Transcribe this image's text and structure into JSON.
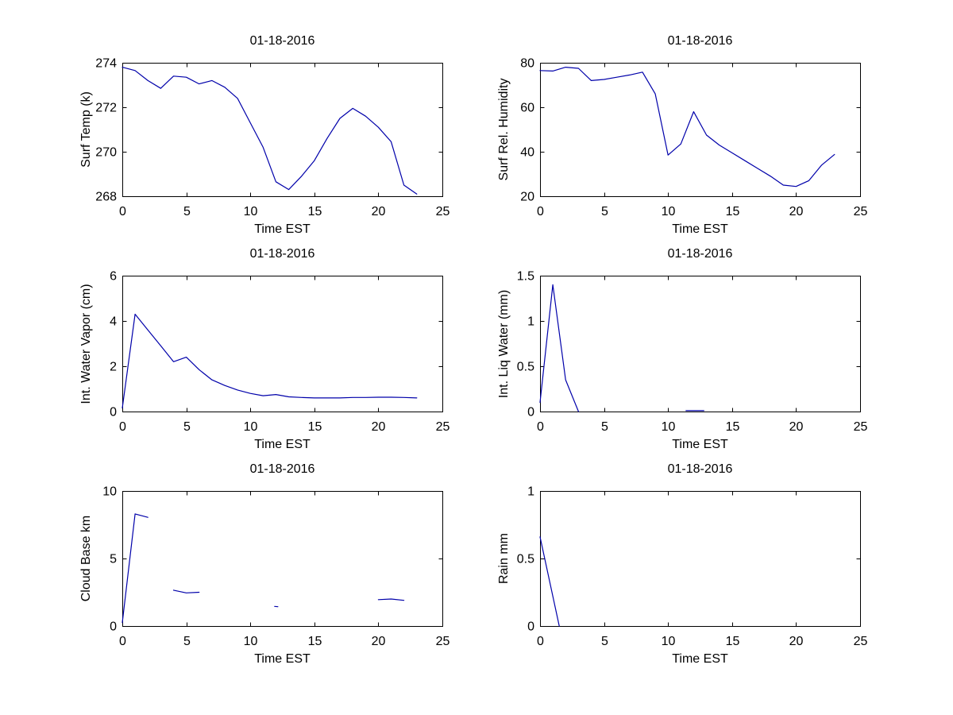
{
  "figure": {
    "background": "#ffffff",
    "axis_color": "#000000",
    "line_color": "#0000AA",
    "date": "01-18-2016"
  },
  "chart_data": [
    {
      "type": "line",
      "title": "01-18-2016",
      "xlabel": "Time EST",
      "ylabel": "Surf Temp (k)",
      "xlim": [
        0,
        25
      ],
      "ylim": [
        268,
        274
      ],
      "xticks": [
        0,
        5,
        10,
        15,
        20,
        25
      ],
      "yticks": [
        268,
        270,
        272,
        274
      ],
      "grid": false,
      "legend": null,
      "series": [
        {
          "name": "surface-temperature",
          "segments": [
            [
              [
                0,
                273.8
              ],
              [
                1,
                273.65
              ],
              [
                2,
                273.2
              ],
              [
                3,
                272.85
              ],
              [
                4,
                273.4
              ],
              [
                5,
                273.35
              ],
              [
                6,
                273.05
              ],
              [
                7,
                273.2
              ],
              [
                8,
                272.9
              ],
              [
                9,
                272.4
              ],
              [
                10,
                271.3
              ],
              [
                11,
                270.2
              ],
              [
                12,
                268.65
              ],
              [
                13,
                268.3
              ],
              [
                14,
                268.9
              ],
              [
                15,
                269.6
              ],
              [
                16,
                270.6
              ],
              [
                17,
                271.5
              ],
              [
                18,
                271.95
              ],
              [
                19,
                271.6
              ],
              [
                20,
                271.1
              ],
              [
                21,
                270.45
              ],
              [
                22,
                268.5
              ],
              [
                23,
                268.1
              ]
            ]
          ]
        }
      ]
    },
    {
      "type": "line",
      "title": "01-18-2016",
      "xlabel": "Time EST",
      "ylabel": "Surf Rel. Humidity",
      "xlim": [
        0,
        25
      ],
      "ylim": [
        20,
        80
      ],
      "xticks": [
        0,
        5,
        10,
        15,
        20,
        25
      ],
      "yticks": [
        20,
        40,
        60,
        80
      ],
      "grid": false,
      "legend": null,
      "series": [
        {
          "name": "surface-relative-humidity",
          "segments": [
            [
              [
                0,
                76.5
              ],
              [
                1,
                76.3
              ],
              [
                2,
                78
              ],
              [
                3,
                77.5
              ],
              [
                4,
                72
              ],
              [
                5,
                72.5
              ],
              [
                6,
                73.5
              ],
              [
                7,
                74.5
              ],
              [
                8,
                75.8
              ],
              [
                9,
                66
              ],
              [
                10,
                38.5
              ],
              [
                11,
                43.5
              ],
              [
                12,
                58
              ],
              [
                13,
                47.5
              ],
              [
                14,
                43
              ],
              [
                15,
                39.5
              ],
              [
                16,
                36
              ],
              [
                17,
                32.5
              ],
              [
                18,
                29
              ],
              [
                19,
                25
              ],
              [
                20,
                24.4
              ],
              [
                21,
                27
              ],
              [
                22,
                34
              ],
              [
                23,
                38.8
              ]
            ]
          ]
        }
      ]
    },
    {
      "type": "line",
      "title": "01-18-2016",
      "xlabel": "Time EST",
      "ylabel": "Int. Water Vapor (cm)",
      "xlim": [
        0,
        25
      ],
      "ylim": [
        0,
        6
      ],
      "xticks": [
        0,
        5,
        10,
        15,
        20,
        25
      ],
      "yticks": [
        0,
        2,
        4,
        6
      ],
      "grid": false,
      "legend": null,
      "series": [
        {
          "name": "integrated-water-vapor",
          "segments": [
            [
              [
                0,
                0.15
              ],
              [
                1,
                4.3
              ],
              [
                2,
                3.6
              ],
              [
                3,
                2.9
              ],
              [
                4,
                2.2
              ],
              [
                5,
                2.4
              ],
              [
                6,
                1.85
              ],
              [
                7,
                1.4
              ],
              [
                8,
                1.15
              ],
              [
                9,
                0.95
              ],
              [
                10,
                0.8
              ],
              [
                11,
                0.7
              ],
              [
                12,
                0.75
              ],
              [
                13,
                0.65
              ],
              [
                14,
                0.62
              ],
              [
                15,
                0.6
              ],
              [
                16,
                0.6
              ],
              [
                17,
                0.6
              ],
              [
                18,
                0.62
              ],
              [
                19,
                0.62
              ],
              [
                20,
                0.63
              ],
              [
                21,
                0.63
              ],
              [
                22,
                0.62
              ],
              [
                23,
                0.6
              ]
            ]
          ]
        }
      ]
    },
    {
      "type": "line",
      "title": "01-18-2016",
      "xlabel": "Time EST",
      "ylabel": "Int. Liq Water (mm)",
      "xlim": [
        0,
        25
      ],
      "ylim": [
        0,
        1.5
      ],
      "xticks": [
        0,
        5,
        10,
        15,
        20,
        25
      ],
      "yticks": [
        0,
        0.5,
        1,
        1.5
      ],
      "grid": false,
      "legend": null,
      "series": [
        {
          "name": "integrated-liquid-water",
          "segments": [
            [
              [
                0,
                0.1
              ],
              [
                1,
                1.4
              ],
              [
                2,
                0.35
              ],
              [
                3,
                0
              ]
            ],
            [
              [
                11.4,
                0.01
              ],
              [
                12.8,
                0.01
              ]
            ]
          ]
        }
      ]
    },
    {
      "type": "line",
      "title": "01-18-2016",
      "xlabel": "Time EST",
      "ylabel": "Cloud Base km",
      "xlim": [
        0,
        25
      ],
      "ylim": [
        0,
        10
      ],
      "xticks": [
        0,
        5,
        10,
        15,
        20,
        25
      ],
      "yticks": [
        0,
        5,
        10
      ],
      "grid": false,
      "legend": null,
      "series": [
        {
          "name": "cloud-base-height",
          "segments": [
            [
              [
                0,
                0.25
              ],
              [
                1,
                8.3
              ],
              [
                2,
                8.05
              ]
            ],
            [
              [
                4,
                2.65
              ],
              [
                5,
                2.45
              ],
              [
                6,
                2.5
              ]
            ],
            [
              [
                11.9,
                1.45
              ],
              [
                12.15,
                1.43
              ]
            ],
            [
              [
                20,
                1.95
              ],
              [
                21,
                2.0
              ],
              [
                22,
                1.9
              ]
            ]
          ]
        }
      ]
    },
    {
      "type": "line",
      "title": "01-18-2016",
      "xlabel": "Time EST",
      "ylabel": "Rain mm",
      "xlim": [
        0,
        25
      ],
      "ylim": [
        0,
        1
      ],
      "xticks": [
        0,
        5,
        10,
        15,
        20,
        25
      ],
      "yticks": [
        0,
        0.5,
        1
      ],
      "grid": false,
      "legend": null,
      "series": [
        {
          "name": "rain-amount",
          "segments": [
            [
              [
                0,
                0.66
              ],
              [
                1.5,
                0
              ]
            ]
          ]
        }
      ]
    }
  ]
}
